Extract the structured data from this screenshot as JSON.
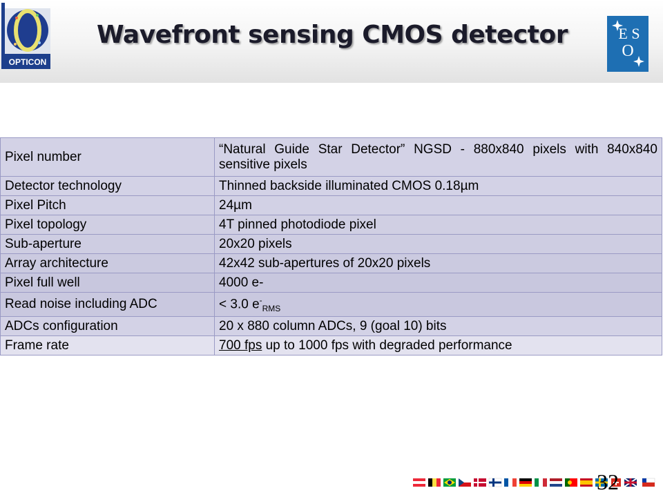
{
  "slide": {
    "title": "Wavefront sensing CMOS  detector",
    "page_number": "32",
    "logos": {
      "left": "OPTICON",
      "right": "ESO"
    }
  },
  "table": {
    "rows": [
      {
        "label": "Pixel number",
        "value": "“Natural Guide Star Detector” NGSD  - 880x840 pixels with 840x840 sensitive pixels"
      },
      {
        "label": "Detector technology",
        "value": "Thinned backside illuminated CMOS 0.18µm"
      },
      {
        "label": "Pixel Pitch",
        "value": "24µm"
      },
      {
        "label": "Pixel topology",
        "value": "4T pinned photodiode pixel"
      },
      {
        "label": "Sub-aperture",
        "value": "20x20 pixels"
      },
      {
        "label": "Array architecture",
        "value": "42x42 sub-apertures of 20x20 pixels"
      },
      {
        "label": "Pixel full well",
        "value": "4000 e-"
      },
      {
        "label": "Read noise including ADC",
        "value_prefix": "< 3.0 e",
        "value_sup": "-",
        "value_sub": "RMS"
      },
      {
        "label": "ADCs configuration",
        "value": "20 x 880 column ADCs, 9 (goal 10) bits"
      },
      {
        "label": "Frame rate",
        "value_underlined": "700 fps",
        "value_rest": " up to 1000 fps with degraded performance"
      }
    ]
  },
  "flags": [
    "at-flag",
    "be-flag",
    "br-flag",
    "cz-flag",
    "dk-flag",
    "fi-flag",
    "fr-flag",
    "de-flag",
    "it-flag",
    "nl-flag",
    "pt-flag",
    "es-flag",
    "se-flag",
    "ch-flag",
    "gb-flag",
    "cl-flag"
  ]
}
